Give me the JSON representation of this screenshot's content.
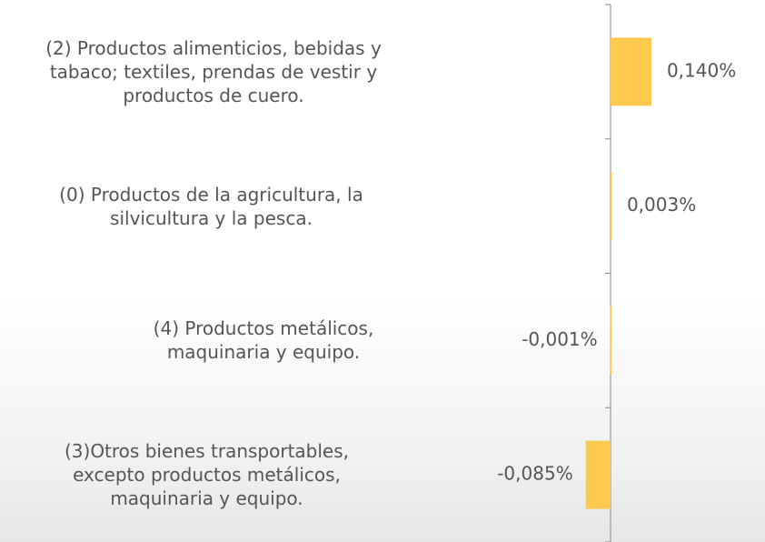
{
  "chart_data": {
    "type": "bar",
    "orientation": "horizontal",
    "categories": [
      "(2) Productos alimenticios, bebidas y tabaco; textiles, prendas de vestir y productos de cuero.",
      "(0) Productos de la agricultura, la silvicultura y la pesca.",
      "(4) Productos metálicos, maquinaria y equipo.",
      "(3)Otros bienes transportables, excepto productos metálicos, maquinaria y equipo."
    ],
    "values": [
      0.14,
      0.003,
      -0.001,
      -0.085
    ],
    "value_labels": [
      "0,140%",
      "0,003%",
      "-0,001%",
      "-0,085%"
    ],
    "color": "#fdc94f"
  }
}
